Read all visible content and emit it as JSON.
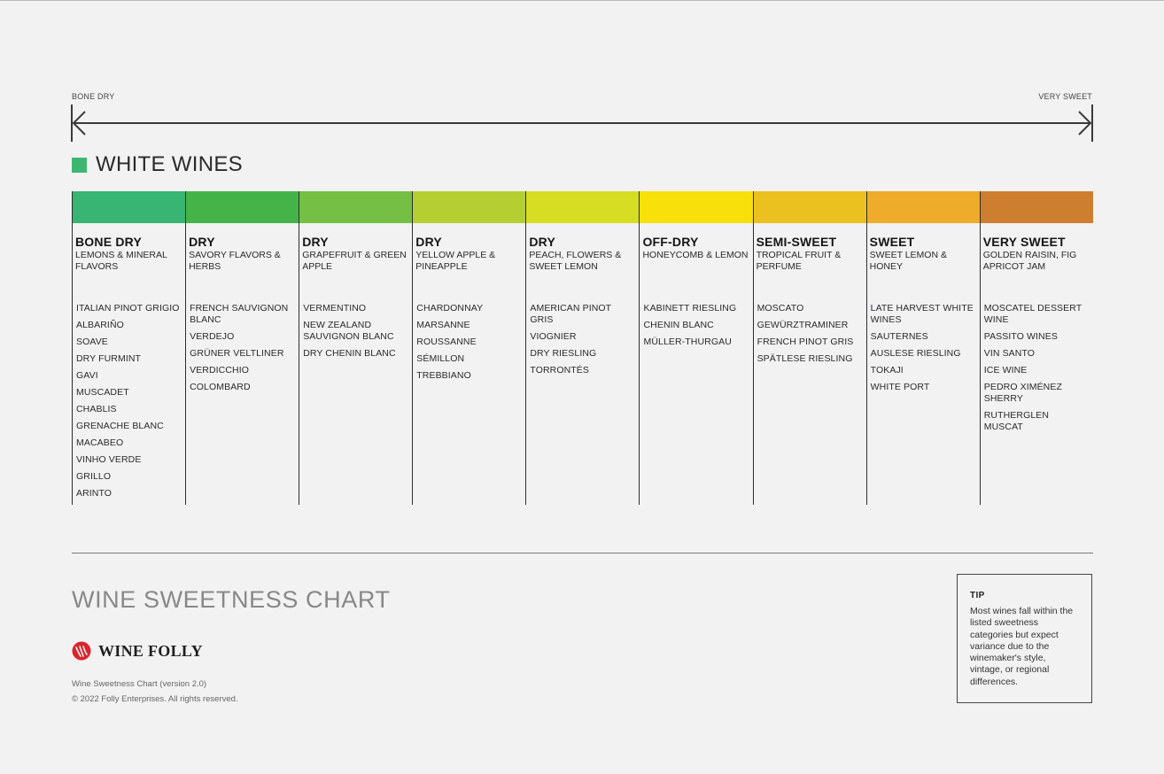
{
  "scale": {
    "left_label": "BONE DRY",
    "right_label": "VERY SWEET"
  },
  "section": {
    "title": "WHITE WINES",
    "swatch_color": "#3db76f"
  },
  "columns": [
    {
      "name": "BONE DRY",
      "flavor": "LEMONS & MINERAL FLAVORS",
      "color": "#38b473",
      "wines": [
        "ITALIAN PINOT GRIGIO",
        "ALBARIÑO",
        "SOAVE",
        "DRY FURMINT",
        "GAVI",
        "MUSCADET",
        "CHABLIS",
        "GRENACHE BLANC",
        "MACABEO",
        "VINHO VERDE",
        "GRILLO",
        "ARINTO"
      ]
    },
    {
      "name": "DRY",
      "flavor": "SAVORY FLAVORS & HERBS",
      "color": "#44b449",
      "wines": [
        "FRENCH SAUVIGNON BLANC",
        "VERDEJO",
        "GRÜNER VELTLINER",
        "VERDICCHIO",
        "COLOMBARD"
      ]
    },
    {
      "name": "DRY",
      "flavor": "GRAPEFRUIT & GREEN APPLE",
      "color": "#74bf44",
      "wines": [
        "VERMENTINO",
        "NEW ZEALAND SAUVIGNON BLANC",
        "DRY CHENIN BLANC"
      ]
    },
    {
      "name": "DRY",
      "flavor": "YELLOW APPLE & PINEAPPLE",
      "color": "#b5cf33",
      "wines": [
        "CHARDONNAY",
        "MARSANNE",
        "ROUSSANNE",
        "SÉMILLON",
        "TREBBIANO"
      ]
    },
    {
      "name": "DRY",
      "flavor": "PEACH, FLOWERS & SWEET LEMON",
      "color": "#d7dd23",
      "wines": [
        "AMERICAN PINOT GRIS",
        "VIOGNIER",
        "DRY RIESLING",
        "TORRONTÉS"
      ]
    },
    {
      "name": "OFF-DRY",
      "flavor": "HONEYCOMB & LEMON",
      "color": "#f8e00a",
      "wines": [
        "KABINETT RIESLING",
        "CHENIN BLANC",
        "MÜLLER-THURGAU"
      ]
    },
    {
      "name": "SEMI-SWEET",
      "flavor": "TROPICAL FRUIT & PERFUME",
      "color": "#ebc11f",
      "wines": [
        "MOSCATO",
        "GEWÜRZTRAMINER",
        "FRENCH PINOT GRIS",
        "SPÄTLESE RIESLING"
      ]
    },
    {
      "name": "SWEET",
      "flavor": "SWEET LEMON & HONEY",
      "color": "#efab2a",
      "wines": [
        "LATE HARVEST WHITE WINES",
        "SAUTERNES",
        "AUSLESE RIESLING",
        "TOKAJI",
        "WHITE PORT"
      ]
    },
    {
      "name": "VERY SWEET",
      "flavor": "GOLDEN RAISIN, FIG APRICOT JAM",
      "color": "#cd7e2e",
      "wines": [
        "MOSCATEL DESSERT WINE",
        "PASSITO WINES",
        "VIN SANTO",
        "ICE WINE",
        "PEDRO XIMÉNEZ SHERRY",
        "RUTHERGLEN MUSCAT"
      ]
    }
  ],
  "footer": {
    "title": "WINE SWEETNESS CHART",
    "brand": "WINE FOLLY",
    "brand_color": "#d8262e",
    "version": "Wine Sweetness Chart (version 2.0)",
    "copyright": "© 2022 Folly Enterprises. All rights reserved."
  },
  "tip": {
    "title": "TIP",
    "text": "Most wines fall within the listed sweetness categories but expect variance due to the winemaker's style, vintage, or regional differences."
  }
}
